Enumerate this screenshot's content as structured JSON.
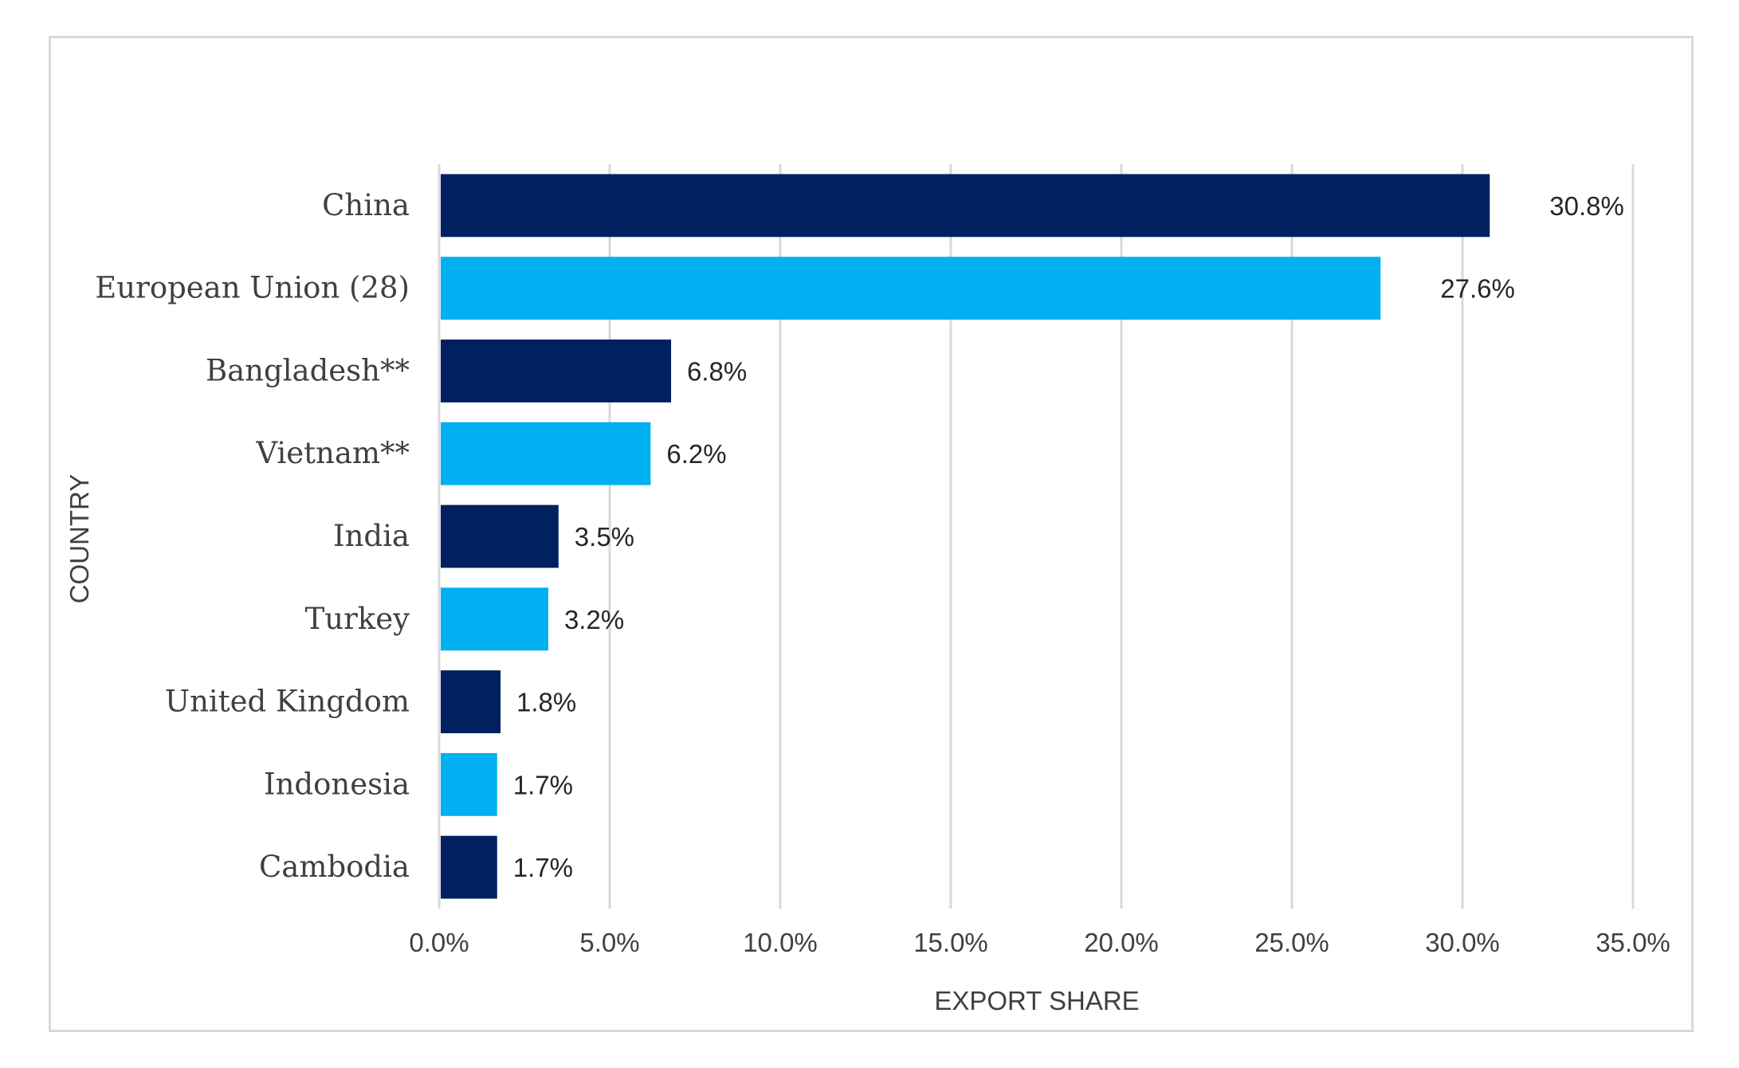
{
  "chart_data": {
    "type": "bar",
    "orientation": "horizontal",
    "categories": [
      "China",
      "European Union (28)",
      "Bangladesh**",
      "Vietnam**",
      "India",
      "Turkey",
      "United Kingdom",
      "Indonesia",
      "Cambodia"
    ],
    "values": [
      30.8,
      27.6,
      6.8,
      6.2,
      3.5,
      3.2,
      1.8,
      1.7,
      1.7
    ],
    "value_labels": [
      "30.8%",
      "27.6%",
      "6.8%",
      "6.2%",
      "3.5%",
      "3.2%",
      "1.8%",
      "1.7%",
      "1.7%"
    ],
    "colors": [
      "#002060",
      "#00b0f0",
      "#002060",
      "#00b0f0",
      "#002060",
      "#00b0f0",
      "#002060",
      "#00b0f0",
      "#002060"
    ],
    "xlabel": "EXPORT SHARE",
    "ylabel": "COUNTRY",
    "xlim": [
      0,
      35
    ],
    "xticks": [
      0,
      5,
      10,
      15,
      20,
      25,
      30,
      35
    ],
    "xtick_labels": [
      "0.0%",
      "5.0%",
      "10.0%",
      "15.0%",
      "20.0%",
      "25.0%",
      "30.0%",
      "35.0%"
    ],
    "grid": "vertical",
    "gridline_color": "#d9d9d9",
    "legend": "none"
  }
}
